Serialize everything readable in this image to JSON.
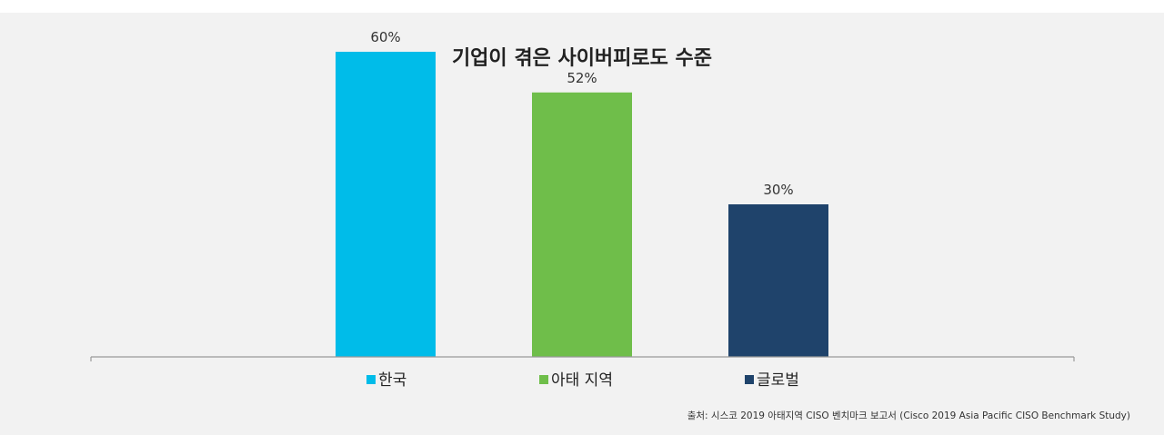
{
  "chart_data": {
    "type": "bar",
    "title": "기업이 겪은 사이버피로도 수준",
    "categories": [
      "한국",
      "아태 지역",
      "글로벌"
    ],
    "values": [
      60,
      52,
      30
    ],
    "data_labels": [
      "60%",
      "52%",
      "30%"
    ],
    "unit": "%",
    "colors": [
      "#00bce9",
      "#6fbe4a",
      "#1f436b"
    ],
    "ylim": [
      0,
      65
    ],
    "grid": false,
    "legend_position": "bottom",
    "source_text": "출처: 시스코 2019 아태지역 CISO 벤치마크 보고서 (Cisco 2019 Asia Pacific CISO Benchmark Study)"
  },
  "style": {
    "background": "#f2f2f2",
    "axis_color": "#9a9a9a"
  }
}
